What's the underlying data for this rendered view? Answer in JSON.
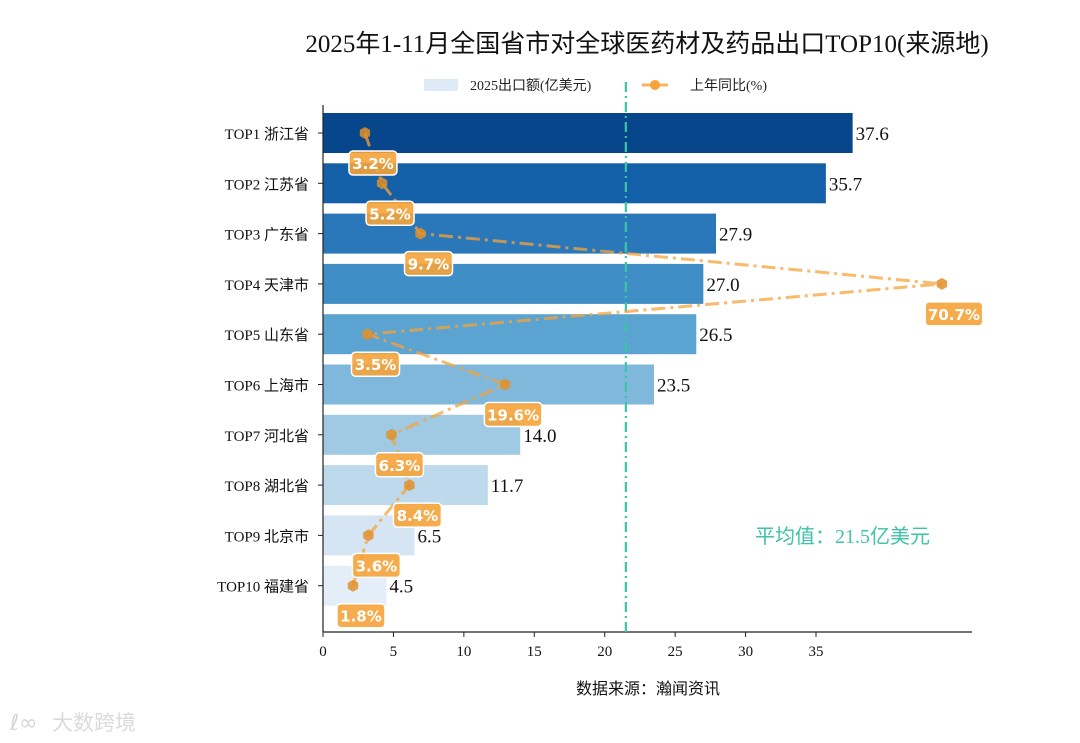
{
  "chart_data": {
    "type": "bar",
    "orientation": "horizontal",
    "title": "2025年1-11月全国省市对全球医药材及药品出口TOP10(来源地)",
    "xlabel": "数据来源：瀚闻资讯",
    "xlim": [
      0,
      39.5
    ],
    "xticks": [
      "0",
      "5",
      "10",
      "15",
      "20",
      "25",
      "30",
      "35"
    ],
    "categories": [
      "TOP1 浙江省",
      "TOP2 江苏省",
      "TOP3 广东省",
      "TOP4 天津市",
      "TOP5 山东省",
      "TOP6 上海市",
      "TOP7 河北省",
      "TOP8 湖北省",
      "TOP9 北京市",
      "TOP10 福建省"
    ],
    "series": [
      {
        "name": "2025出口额(亿美元)",
        "type": "bar",
        "values": [
          37.6,
          35.7,
          27.9,
          27.0,
          26.5,
          23.5,
          14.0,
          11.7,
          6.5,
          4.5
        ],
        "labels": [
          "37.6",
          "35.7",
          "27.9",
          "27.0",
          "26.5",
          "23.5",
          "14.0",
          "11.7",
          "6.5",
          "4.5"
        ]
      },
      {
        "name": "上年同比(%)",
        "type": "line",
        "values": [
          3.2,
          5.2,
          9.7,
          70.7,
          3.5,
          19.6,
          6.3,
          8.4,
          3.6,
          1.8
        ],
        "labels": [
          "3.2%",
          "5.2%",
          "9.7%",
          "70.7%",
          "3.5%",
          "19.6%",
          "6.3%",
          "8.4%",
          "3.6%",
          "1.8%"
        ],
        "color": "#f5a33a"
      }
    ],
    "bar_colors": [
      "#08468c",
      "#1460a8",
      "#2a77ba",
      "#3f8ec6",
      "#5ba3d0",
      "#7fb8da",
      "#a0cae3",
      "#bed8ec",
      "#d5e5f4",
      "#e3eef8"
    ],
    "average": {
      "value": 21.5,
      "label": "平均值：21.5亿美元",
      "color": "#3cc3a8"
    },
    "legend": {
      "placement": "top-center"
    }
  },
  "watermark": "大数跨境"
}
